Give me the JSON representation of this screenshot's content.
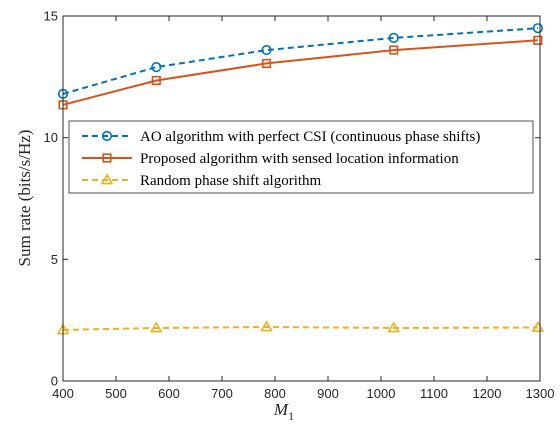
{
  "chart_data": {
    "type": "line",
    "title": "",
    "xlabel": "M",
    "xlabel_sub": "1",
    "ylabel": "Sum rate (bits/s/Hz)",
    "xlim": [
      400,
      1300
    ],
    "ylim": [
      0,
      15
    ],
    "xticks": [
      "400",
      "500",
      "600",
      "700",
      "800",
      "900",
      "1000",
      "1100",
      "1200",
      "1300"
    ],
    "yticks": [
      "0",
      "5",
      "10",
      "15"
    ],
    "grid": false,
    "legend_position": "upper-left",
    "series": [
      {
        "name": "AO algorithm with perfect CSI (continuous phase shifts)",
        "color": "#0072BD",
        "line": "dashed",
        "marker": "circle",
        "x": [
          400,
          576,
          784,
          1024,
          1296
        ],
        "y": [
          11.8,
          12.9,
          13.6,
          14.1,
          14.5
        ]
      },
      {
        "name": "Proposed algorithm with sensed location information",
        "color": "#D95319",
        "line": "solid",
        "marker": "square",
        "x": [
          400,
          576,
          784,
          1024,
          1296
        ],
        "y": [
          11.35,
          12.35,
          13.05,
          13.6,
          14.0
        ]
      },
      {
        "name": "Random phase shift algorithm",
        "color": "#EDB120",
        "line": "dashed",
        "marker": "triangle",
        "x": [
          400,
          576,
          784,
          1024,
          1296
        ],
        "y": [
          2.1,
          2.18,
          2.22,
          2.18,
          2.2
        ]
      }
    ]
  }
}
